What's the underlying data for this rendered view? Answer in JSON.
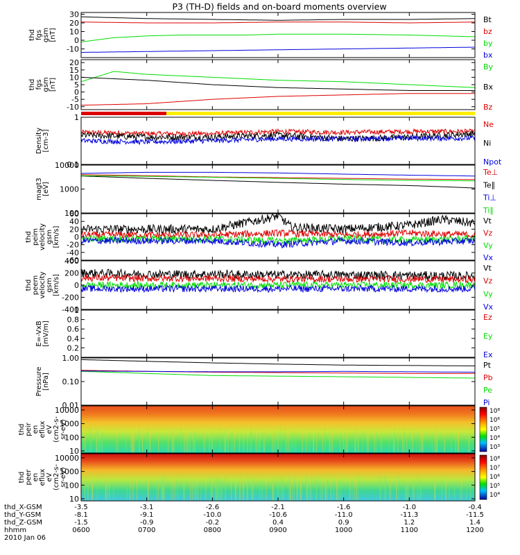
{
  "title": "P3 (TH-D) fields and on-board moments overview",
  "colors": {
    "black": "#000000",
    "red": "#dd0000",
    "green": "#00dd00",
    "blue": "#0000dd",
    "yellow": "#ffee00",
    "frame": "#000000"
  },
  "xaxis": {
    "ticks": [
      "0600",
      "0700",
      "0800",
      "0900",
      "1000",
      "1100",
      "1200"
    ],
    "tick_hours": [
      6,
      7,
      8,
      9,
      10,
      11,
      12
    ],
    "range_hours": [
      6,
      12
    ],
    "rows": [
      {
        "label": "thd_X-GSM",
        "values": [
          "-3.5",
          "-3.1",
          "-2.6",
          "-2.1",
          "-1.6",
          "-1.0",
          "-0.4"
        ]
      },
      {
        "label": "thd_Y-GSM",
        "values": [
          "-8.1",
          "-9.1",
          "-10.0",
          "-10.6",
          "-11.0",
          "-11.3",
          "-11.5"
        ]
      },
      {
        "label": "thd_Z-GSM",
        "values": [
          "-1.5",
          "-0.9",
          "-0.2",
          "0.4",
          "0.9",
          "1.2",
          "1.4"
        ]
      },
      {
        "label": "hhmm",
        "values": [
          "0600",
          "0700",
          "0800",
          "0900",
          "1000",
          "1100",
          "1200"
        ]
      }
    ],
    "date": "2010 Jan 06"
  },
  "chart_data": [
    {
      "type": "line",
      "panel": "fgs_gsm",
      "ylabel": [
        "thd",
        "fgs",
        "gsm",
        "[nT]"
      ],
      "ylim": [
        -20,
        32
      ],
      "scale": "linear",
      "yticks": [
        -10,
        0,
        10,
        20,
        30
      ],
      "series": [
        {
          "name": "Bt",
          "color": "black",
          "x": [
            6,
            7,
            8,
            9,
            10,
            11,
            12
          ],
          "values": [
            27,
            25,
            24,
            23,
            24,
            24,
            25
          ]
        },
        {
          "name": "bz",
          "color": "red",
          "x": [
            6,
            7,
            8,
            9,
            10,
            11,
            12
          ],
          "values": [
            21,
            20,
            20,
            21,
            21,
            20,
            21
          ]
        },
        {
          "name": "by",
          "color": "green",
          "x": [
            6,
            6.5,
            7,
            7.5,
            8,
            8.5,
            9,
            10,
            11,
            12
          ],
          "values": [
            -2,
            3,
            5,
            6,
            6,
            6,
            7,
            7,
            6,
            4
          ]
        },
        {
          "name": "bx",
          "color": "blue",
          "x": [
            6,
            7,
            8,
            9,
            10,
            11,
            12
          ],
          "values": [
            -14,
            -13,
            -12,
            -11,
            -10,
            -9,
            -8
          ]
        }
      ]
    },
    {
      "type": "line",
      "panel": "fgs_gse_cfixed",
      "ylabel": [
        "thd",
        "fgs",
        "gsm",
        "[nT]"
      ],
      "ylim": [
        -12,
        22
      ],
      "scale": "linear",
      "yticks": [
        -10,
        -5,
        0,
        5,
        10,
        15,
        20
      ],
      "series": [
        {
          "name": "By",
          "color": "green",
          "x": [
            6,
            6.5,
            7,
            8,
            9,
            10,
            11,
            12
          ],
          "values": [
            7,
            14,
            12,
            10,
            8,
            7,
            5,
            3
          ]
        },
        {
          "name": "Bx",
          "color": "black",
          "x": [
            6,
            7,
            8,
            9,
            10,
            11,
            12
          ],
          "values": [
            10,
            8,
            5,
            3,
            2,
            1,
            1
          ]
        },
        {
          "name": "Bz",
          "color": "red",
          "x": [
            6,
            7,
            8,
            9,
            10,
            11,
            12
          ],
          "values": [
            -9,
            -8,
            -5,
            -3,
            -2,
            -1,
            -1
          ]
        }
      ]
    },
    {
      "type": "bar",
      "panel": "mode_bar",
      "series": [
        {
          "name": "slow",
          "color": "red",
          "x": [
            6,
            7.3
          ]
        },
        {
          "name": "fast",
          "color": "yellow",
          "x": [
            7.3,
            12
          ]
        }
      ]
    },
    {
      "type": "line",
      "panel": "density",
      "ylabel": [
        "Density",
        "[cm-3]"
      ],
      "ylim": [
        0.1,
        1.0
      ],
      "scale": "log",
      "yticks": [
        0.1,
        1.0
      ],
      "series": [
        {
          "name": "Ne",
          "color": "red",
          "x": [
            6,
            7,
            8,
            9,
            10,
            11,
            12
          ],
          "values": [
            0.48,
            0.45,
            0.45,
            0.5,
            0.48,
            0.5,
            0.5
          ]
        },
        {
          "name": "Ni",
          "color": "black",
          "x": [
            6,
            7,
            8,
            9,
            10,
            11,
            12
          ],
          "values": [
            0.42,
            0.38,
            0.38,
            0.42,
            0.35,
            0.38,
            0.45
          ]
        },
        {
          "name": "Npot",
          "color": "blue",
          "x": [
            6,
            7,
            8,
            9,
            10,
            11,
            12
          ],
          "values": [
            0.32,
            0.3,
            0.32,
            0.35,
            0.35,
            0.36,
            0.36
          ]
        }
      ]
    },
    {
      "type": "line",
      "panel": "temperature",
      "ylabel": [
        "magt3",
        "[eV]"
      ],
      "ylim": [
        100,
        10000
      ],
      "scale": "log",
      "yticks": [
        100,
        1000,
        10000
      ],
      "series": [
        {
          "name": "Te⊥",
          "color": "red",
          "x": [
            6,
            7,
            8,
            9,
            10,
            11,
            12
          ],
          "values": [
            4000,
            3600,
            3200,
            3000,
            2800,
            2600,
            2500
          ]
        },
        {
          "name": "Te∥",
          "color": "black",
          "x": [
            6,
            7,
            8,
            9,
            10,
            11,
            12
          ],
          "values": [
            3500,
            2800,
            2300,
            1900,
            1600,
            1400,
            1100
          ]
        },
        {
          "name": "Ti⊥",
          "color": "blue",
          "x": [
            6,
            7,
            8,
            9,
            10,
            11,
            12
          ],
          "values": [
            4500,
            5000,
            5000,
            4700,
            4200,
            3800,
            3500
          ]
        },
        {
          "name": "Ti∥",
          "color": "green",
          "x": [
            6,
            7,
            8,
            9,
            10,
            11,
            12
          ],
          "values": [
            3600,
            3400,
            3100,
            2800,
            2500,
            2300,
            2200
          ]
        }
      ]
    },
    {
      "type": "line",
      "panel": "peim_velocity",
      "ylabel": [
        "thd",
        "peim",
        "velocity",
        "gsm",
        "[km/s]"
      ],
      "ylim": [
        -60,
        60
      ],
      "scale": "linear",
      "yticks": [
        -60,
        -40,
        -20,
        0,
        20,
        40,
        60
      ],
      "series": [
        {
          "name": "Vt",
          "color": "black",
          "x": [
            6,
            8,
            8.9,
            9,
            9.2,
            10,
            11,
            11.5,
            12
          ],
          "values": [
            20,
            20,
            50,
            55,
            25,
            20,
            30,
            45,
            35
          ]
        },
        {
          "name": "Vz",
          "color": "red",
          "x": [
            6,
            8,
            9,
            10,
            11,
            12
          ],
          "values": [
            5,
            5,
            10,
            5,
            10,
            5
          ]
        },
        {
          "name": "Vy",
          "color": "green",
          "x": [
            6,
            8,
            9,
            10,
            11,
            12
          ],
          "values": [
            -5,
            -5,
            -10,
            -5,
            -8,
            -5
          ]
        },
        {
          "name": "Vx",
          "color": "blue",
          "x": [
            6,
            8,
            9,
            10,
            11,
            12
          ],
          "values": [
            -10,
            -10,
            -20,
            -10,
            -15,
            -10
          ]
        }
      ]
    },
    {
      "type": "line",
      "panel": "peem_velocity",
      "ylabel": [
        "thd",
        "peem",
        "velocity",
        "gsm",
        "[km/s]"
      ],
      "ylim": [
        -400,
        400
      ],
      "scale": "linear",
      "yticks": [
        -400,
        -200,
        0,
        200,
        400
      ],
      "series": [
        {
          "name": "Vt",
          "color": "black",
          "x": [
            6,
            7,
            8,
            9,
            10,
            11,
            12
          ],
          "values": [
            200,
            180,
            180,
            170,
            170,
            160,
            150
          ]
        },
        {
          "name": "Vz",
          "color": "red",
          "x": [
            6,
            7,
            8,
            9,
            10,
            11,
            12
          ],
          "values": [
            120,
            110,
            110,
            100,
            100,
            100,
            90
          ]
        },
        {
          "name": "Vy",
          "color": "green",
          "x": [
            6,
            7,
            8,
            9,
            10,
            11,
            12
          ],
          "values": [
            0,
            0,
            0,
            0,
            0,
            0,
            0
          ]
        },
        {
          "name": "Vx",
          "color": "blue",
          "x": [
            6,
            7,
            8,
            9,
            10,
            11,
            12
          ],
          "values": [
            -60,
            -60,
            -60,
            -60,
            -60,
            -60,
            -60
          ]
        }
      ]
    },
    {
      "type": "line",
      "panel": "efield",
      "ylabel": [
        "E=-VxB",
        "[mV/m]"
      ],
      "ylim": [
        0,
        1.0
      ],
      "scale": "linear",
      "yticks": [
        0.2,
        0.4,
        0.6,
        0.8,
        1.0
      ],
      "series": [
        {
          "name": "Ez",
          "color": "red",
          "x": [],
          "values": []
        },
        {
          "name": "Ey",
          "color": "green",
          "x": [],
          "values": []
        },
        {
          "name": "Ex",
          "color": "blue",
          "x": [],
          "values": []
        }
      ]
    },
    {
      "type": "line",
      "panel": "pressure",
      "ylabel": [
        "Pressure",
        "[nPa]"
      ],
      "ylim": [
        0.01,
        1.0
      ],
      "scale": "log",
      "yticks": [
        0.01,
        0.1,
        1.0
      ],
      "yticklabels": [
        "0.01",
        "0.10",
        "1.00"
      ],
      "series": [
        {
          "name": "Pt",
          "color": "black",
          "x": [
            6,
            7,
            8,
            9,
            10,
            11,
            12
          ],
          "values": [
            0.85,
            0.72,
            0.62,
            0.55,
            0.5,
            0.48,
            0.46
          ]
        },
        {
          "name": "Pb",
          "color": "red",
          "x": [
            6,
            7,
            8,
            9,
            10,
            11,
            12
          ],
          "values": [
            0.3,
            0.27,
            0.25,
            0.24,
            0.23,
            0.22,
            0.22
          ]
        },
        {
          "name": "Pe",
          "color": "green",
          "x": [
            6,
            7,
            8,
            9,
            10,
            11,
            12
          ],
          "values": [
            0.27,
            0.22,
            0.18,
            0.17,
            0.16,
            0.15,
            0.14
          ]
        },
        {
          "name": "Pi",
          "color": "blue",
          "x": [
            6,
            7,
            8,
            9,
            10,
            11,
            12
          ],
          "values": [
            0.28,
            0.27,
            0.26,
            0.26,
            0.27,
            0.26,
            0.25
          ]
        }
      ]
    },
    {
      "type": "heatmap",
      "panel": "peir_spectrogram",
      "ylabel": [
        "thd",
        "peir",
        "en",
        "eflux",
        "eV",
        "(cm2-s-",
        "sr-eV)"
      ],
      "ylim": [
        7,
        20000
      ],
      "scale": "log",
      "yticks": [
        10,
        100,
        1000,
        10000
      ],
      "colorbar": {
        "ticks": [
          "10⁸",
          "10⁶",
          "10⁵",
          "10⁴",
          "10³"
        ]
      }
    },
    {
      "type": "heatmap",
      "panel": "peer_spectrogram",
      "ylabel": [
        "thd",
        "peer",
        "en",
        "eflux",
        "eV",
        "(cm2-s-",
        "sr-eV)"
      ],
      "ylim": [
        7,
        20000
      ],
      "scale": "log",
      "yticks": [
        10,
        100,
        1000,
        10000
      ],
      "colorbar": {
        "ticks": [
          "10⁸",
          "10⁷",
          "10⁶",
          "10⁵",
          "10⁴"
        ]
      }
    }
  ]
}
